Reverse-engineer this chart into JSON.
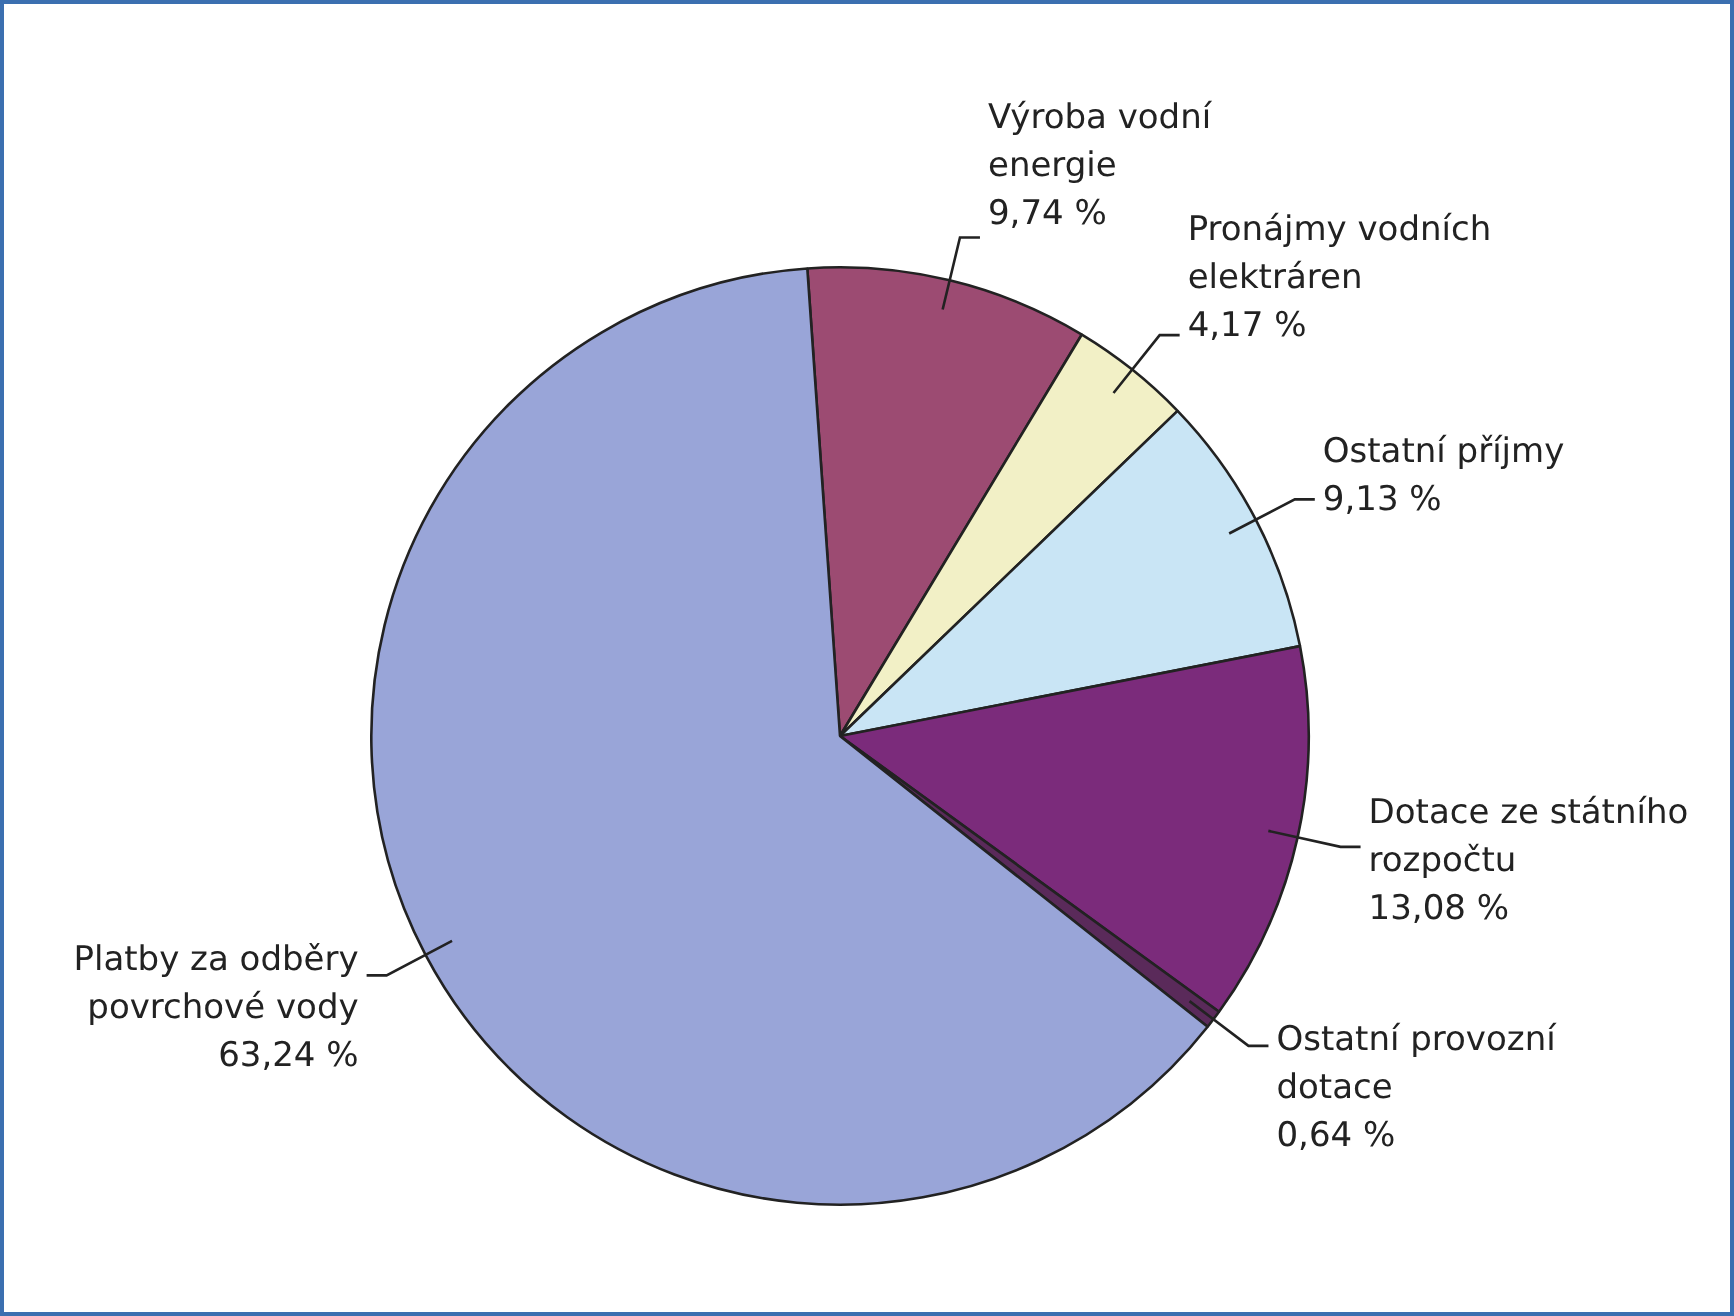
{
  "chart_data": {
    "type": "pie",
    "categories": [
      "Výroba vodní energie",
      "Pronájmy vodních elektráren",
      "Ostatní příjmy",
      "Dotace ze státního rozpočtu",
      "Ostatní provozní dotace",
      "Platby za odběry povrchové vody"
    ],
    "values": [
      9.74,
      4.17,
      9.13,
      13.08,
      0.64,
      63.24
    ],
    "value_labels": [
      "9,74 %",
      "4,17 %",
      "9,13 %",
      "13,08 %",
      "0,64 %",
      "63,24 %"
    ],
    "colors": [
      "#9c4b72",
      "#f2f0c6",
      "#c9e5f5",
      "#7b2b7b",
      "#5a2a5a",
      "#99a5d8"
    ],
    "legend": false
  }
}
